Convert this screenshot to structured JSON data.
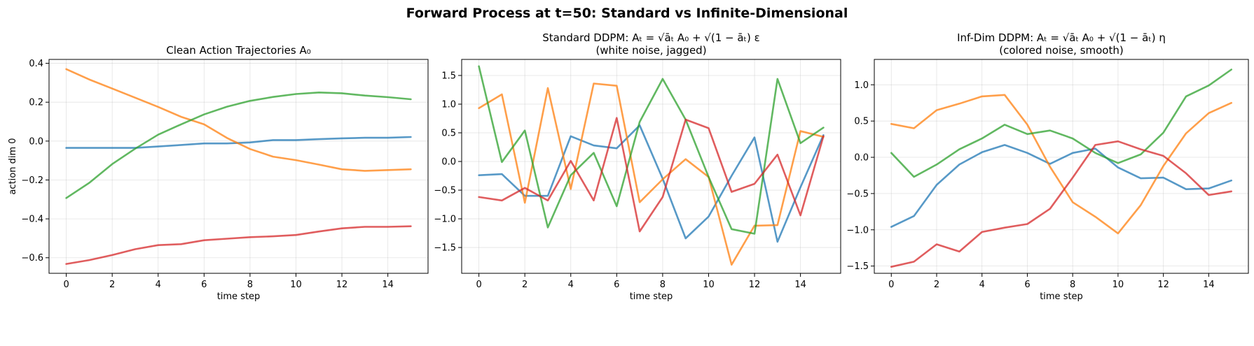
{
  "suptitle": "Forward Process at t=50: Standard vs Infinite-Dimensional",
  "colors": [
    "#1f77b4",
    "#ff7f0e",
    "#2ca02c",
    "#d62728"
  ],
  "chart_data": [
    {
      "type": "line",
      "title_lines": [
        "Clean Action Trajectories A₀"
      ],
      "xlabel": "time step",
      "ylabel": "action dim 0",
      "grid": true,
      "xlim": [
        -0.75,
        15.75
      ],
      "ylim": [
        -0.68,
        0.42
      ],
      "xticks": [
        0,
        2,
        4,
        6,
        8,
        10,
        12,
        14
      ],
      "yticks": [
        -0.6,
        -0.4,
        -0.2,
        0.0,
        0.2,
        0.4
      ],
      "ytick_labels": [
        "−0.6",
        "−0.4",
        "−0.2",
        "0.0",
        "0.2",
        "0.4"
      ],
      "x": [
        0,
        1,
        2,
        3,
        4,
        5,
        6,
        7,
        8,
        9,
        10,
        11,
        12,
        13,
        14,
        15
      ],
      "series": [
        {
          "values": [
            -0.035,
            -0.035,
            -0.035,
            -0.035,
            -0.028,
            -0.02,
            -0.012,
            -0.012,
            -0.007,
            0.005,
            0.005,
            0.01,
            0.014,
            0.017,
            0.017,
            0.021
          ]
        },
        {
          "values": [
            0.37,
            0.317,
            0.27,
            0.223,
            0.176,
            0.125,
            0.086,
            0.016,
            -0.041,
            -0.08,
            -0.098,
            -0.121,
            -0.145,
            -0.153,
            -0.149,
            -0.145
          ]
        },
        {
          "values": [
            -0.293,
            -0.215,
            -0.118,
            -0.039,
            0.033,
            0.086,
            0.137,
            0.177,
            0.207,
            0.227,
            0.242,
            0.25,
            0.246,
            0.234,
            0.226,
            0.215
          ]
        },
        {
          "values": [
            -0.632,
            -0.612,
            -0.586,
            -0.556,
            -0.535,
            -0.53,
            -0.51,
            -0.502,
            -0.494,
            -0.49,
            -0.483,
            -0.465,
            -0.449,
            -0.441,
            -0.441,
            -0.438
          ]
        }
      ]
    },
    {
      "type": "line",
      "title_lines": [
        "Standard DDPM: Aₜ = √āₜ A₀ + √(1 − āₜ) ε",
        "(white noise, jagged)"
      ],
      "xlabel": "time step",
      "ylabel": "",
      "grid": true,
      "xlim": [
        -0.75,
        15.75
      ],
      "ylim": [
        -1.95,
        1.78
      ],
      "xticks": [
        0,
        2,
        4,
        6,
        8,
        10,
        12,
        14
      ],
      "yticks": [
        -1.5,
        -1.0,
        -0.5,
        0.0,
        0.5,
        1.0,
        1.5
      ],
      "ytick_labels": [
        "−1.5",
        "−1.0",
        "−0.5",
        "0.0",
        "0.5",
        "1.0",
        "1.5"
      ],
      "x": [
        0,
        1,
        2,
        3,
        4,
        5,
        6,
        7,
        8,
        9,
        10,
        11,
        12,
        13,
        14,
        15
      ],
      "series": [
        {
          "values": [
            -0.24,
            -0.22,
            -0.6,
            -0.6,
            0.44,
            0.28,
            0.23,
            0.63,
            -0.3,
            -1.34,
            -0.96,
            -0.25,
            0.42,
            -1.4,
            -0.45,
            0.46
          ]
        },
        {
          "values": [
            0.93,
            1.17,
            -0.72,
            1.28,
            -0.48,
            1.36,
            1.32,
            -0.71,
            -0.31,
            0.04,
            -0.27,
            -1.8,
            -1.12,
            -1.11,
            0.53,
            0.43
          ]
        },
        {
          "values": [
            1.66,
            -0.01,
            0.54,
            -1.15,
            -0.24,
            0.15,
            -0.78,
            0.69,
            1.44,
            0.73,
            -0.27,
            -1.18,
            -1.26,
            1.44,
            0.32,
            0.59
          ]
        },
        {
          "values": [
            -0.62,
            -0.68,
            -0.46,
            -0.68,
            0.01,
            -0.68,
            0.76,
            -1.22,
            -0.62,
            0.73,
            0.58,
            -0.53,
            -0.39,
            0.12,
            -0.94,
            0.44
          ]
        }
      ]
    },
    {
      "type": "line",
      "title_lines": [
        "Inf-Dim DDPM: Aₜ = √āₜ A₀ + √(1 − āₜ) η",
        "(colored noise, smooth)"
      ],
      "xlabel": "time step",
      "ylabel": "",
      "grid": true,
      "xlim": [
        -0.75,
        15.75
      ],
      "ylim": [
        -1.6,
        1.35
      ],
      "xticks": [
        0,
        2,
        4,
        6,
        8,
        10,
        12,
        14
      ],
      "yticks": [
        -1.5,
        -1.0,
        -0.5,
        0.0,
        0.5,
        1.0
      ],
      "ytick_labels": [
        "−1.5",
        "−1.0",
        "−0.5",
        "0.0",
        "0.5",
        "1.0"
      ],
      "x": [
        0,
        1,
        2,
        3,
        4,
        5,
        6,
        7,
        8,
        9,
        10,
        11,
        12,
        13,
        14,
        15
      ],
      "series": [
        {
          "values": [
            -0.96,
            -0.81,
            -0.38,
            -0.1,
            0.07,
            0.17,
            0.06,
            -0.09,
            0.06,
            0.12,
            -0.14,
            -0.29,
            -0.28,
            -0.44,
            -0.43,
            -0.32
          ]
        },
        {
          "values": [
            0.46,
            0.4,
            0.65,
            0.74,
            0.84,
            0.86,
            0.45,
            -0.13,
            -0.62,
            -0.82,
            -1.05,
            -0.66,
            -0.12,
            0.33,
            0.61,
            0.75
          ]
        },
        {
          "values": [
            0.06,
            -0.27,
            -0.1,
            0.11,
            0.26,
            0.45,
            0.32,
            0.37,
            0.26,
            0.06,
            -0.08,
            0.04,
            0.34,
            0.84,
            0.99,
            1.21
          ]
        },
        {
          "values": [
            -1.51,
            -1.44,
            -1.2,
            -1.3,
            -1.03,
            -0.97,
            -0.92,
            -0.71,
            -0.28,
            0.17,
            0.22,
            0.11,
            0.02,
            -0.22,
            -0.52,
            -0.47
          ]
        }
      ]
    }
  ]
}
